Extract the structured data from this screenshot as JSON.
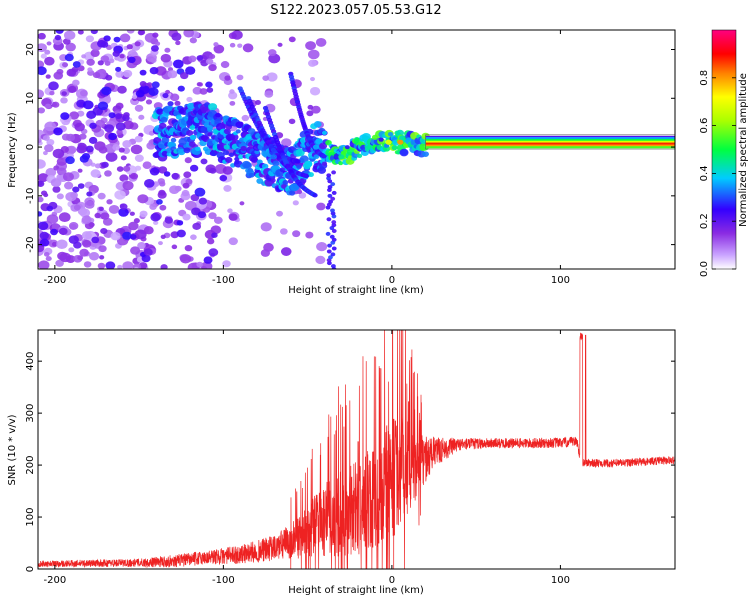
{
  "title": "S122.2023.057.05.53.G12",
  "chart_data": [
    {
      "type": "heatmap",
      "xlabel": "Height of straight line (km)",
      "ylabel": "Frequency (Hz)",
      "xlim": [
        -210,
        168
      ],
      "ylim": [
        -25,
        24
      ],
      "xticks": [
        -200,
        -100,
        0,
        100
      ],
      "yticks": [
        -20,
        -10,
        0,
        10,
        20
      ],
      "colorbar": {
        "label": "Normalized spectral amplitude",
        "range": [
          0,
          1
        ],
        "ticks": [
          0.0,
          0.2,
          0.4,
          0.6,
          0.8
        ],
        "colormap": [
          "#ffffff",
          "#8a2be2",
          "#4000ff",
          "#00e5ff",
          "#00ff00",
          "#ffff00",
          "#ff8000",
          "#ff0000",
          "#ff0080"
        ]
      },
      "ridge": {
        "description_points": [
          [
            -130,
            3
          ],
          [
            -110,
            4
          ],
          [
            -95,
            1
          ],
          [
            -80,
            -2
          ],
          [
            -60,
            -5
          ],
          [
            -45,
            0
          ],
          [
            -30,
            -2
          ],
          [
            -15,
            1
          ],
          [
            0,
            1
          ],
          [
            20,
            0.5
          ],
          [
            168,
            0.5
          ]
        ],
        "steady_band": {
          "x_start": 20,
          "x_end": 168,
          "freq_low": 0,
          "freq_high": 1.5
        }
      }
    },
    {
      "type": "line",
      "xlabel": "Height of straight line (km)",
      "ylabel": "SNR (10 * v/v)",
      "xlim": [
        -210,
        168
      ],
      "ylim": [
        0,
        460
      ],
      "xticks": [
        -200,
        -100,
        0,
        100
      ],
      "yticks": [
        0,
        100,
        200,
        300,
        400
      ],
      "series": [
        {
          "color": "#ee2222",
          "envelope": [
            [
              -210,
              10,
              6
            ],
            [
              -150,
              12,
              8
            ],
            [
              -130,
              15,
              12
            ],
            [
              -110,
              22,
              14
            ],
            [
              -90,
              28,
              18
            ],
            [
              -70,
              40,
              25
            ],
            [
              -55,
              60,
              40
            ],
            [
              -45,
              85,
              60
            ],
            [
              -35,
              100,
              80
            ],
            [
              -25,
              110,
              90
            ],
            [
              -15,
              125,
              100
            ],
            [
              -5,
              160,
              110
            ],
            [
              5,
              185,
              120
            ],
            [
              15,
              200,
              60
            ],
            [
              25,
              225,
              30
            ],
            [
              40,
              240,
              12
            ],
            [
              60,
              242,
              10
            ],
            [
              80,
              242,
              10
            ],
            [
              100,
              243,
              10
            ],
            [
              110,
              245,
              10
            ],
            [
              112,
              205,
              8
            ],
            [
              130,
              203,
              8
            ],
            [
              168,
              210,
              8
            ]
          ],
          "spikes": [
            [
              10,
              322
            ],
            [
              2,
              285
            ],
            [
              113,
              455
            ],
            [
              115,
              450
            ],
            [
              -20,
              245
            ]
          ]
        }
      ]
    }
  ]
}
